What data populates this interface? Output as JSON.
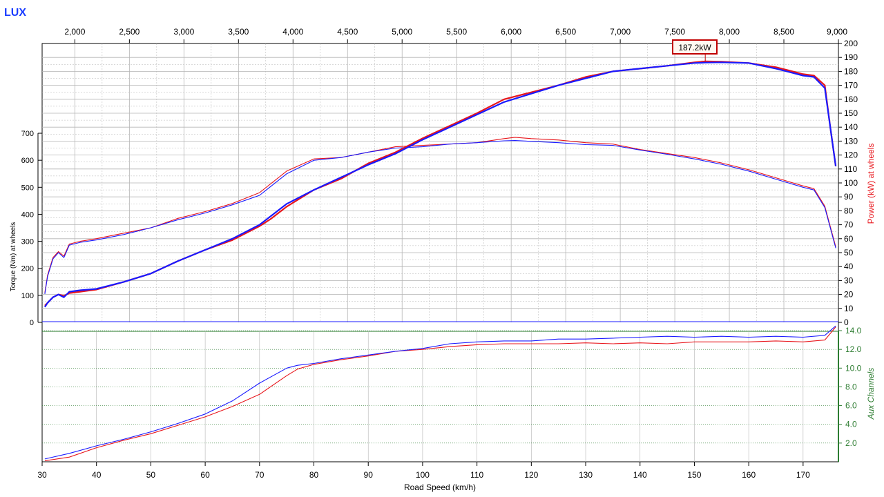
{
  "app_title": "LUX",
  "colors": {
    "run_a": "#e8161c",
    "run_b": "#1a1aff",
    "aux_axis": "#2e7d32",
    "grid": "#b4b4b4",
    "aux_grid": "#2e7d32"
  },
  "chart_data": {
    "type": "line",
    "title": "LUX",
    "xlabel": "Road Speed (km/h)",
    "xlim": [
      30,
      176.5
    ],
    "x_ticks": [
      "30",
      "40",
      "50",
      "60",
      "70",
      "80",
      "90",
      "100",
      "110",
      "120",
      "130",
      "140",
      "150",
      "160",
      "170"
    ],
    "rpm_axis": {
      "lim": [
        1700,
        9000
      ],
      "ticks": [
        "2,000",
        "2,500",
        "3,000",
        "3,500",
        "4,000",
        "4,500",
        "5,000",
        "5,500",
        "6,000",
        "6,500",
        "7,000",
        "7,500",
        "8,000",
        "8,500",
        "9,000"
      ]
    },
    "power_axis": {
      "label": "Power (kW) at wheels",
      "lim": [
        0,
        200
      ],
      "ticks": [
        "0",
        "10",
        "20",
        "30",
        "40",
        "50",
        "60",
        "70",
        "80",
        "90",
        "100",
        "110",
        "120",
        "130",
        "140",
        "150",
        "160",
        "170",
        "180",
        "190",
        "200"
      ]
    },
    "torque_axis": {
      "label": "Torque (Nm) at wheels",
      "lim": [
        0,
        700
      ],
      "ticks": [
        "0",
        "100",
        "200",
        "300",
        "400",
        "500",
        "600",
        "700"
      ]
    },
    "aux_axis": {
      "label": "Aux Channels",
      "lim": [
        0,
        14
      ],
      "ticks": [
        "2.0",
        "4.0",
        "6.0",
        "8.0",
        "10.0",
        "12.0",
        "14.0"
      ]
    },
    "peak_annotation": {
      "text": "187.2kW",
      "x": 152,
      "y": 187.2
    },
    "series": [
      {
        "group": "power",
        "run": "red",
        "x": [
          30.5,
          31,
          32,
          33,
          34,
          35,
          37,
          40,
          45,
          50,
          55,
          60,
          65,
          70,
          72,
          75,
          80,
          85,
          90,
          95,
          100,
          105,
          110,
          115,
          120,
          125,
          130,
          135,
          140,
          145,
          150,
          152,
          155,
          160,
          165,
          170,
          172,
          174,
          175,
          176
        ],
        "y": [
          12,
          14,
          18,
          20,
          19,
          21,
          22,
          23.5,
          29,
          35,
          44,
          52,
          59,
          69,
          74,
          83,
          95,
          103,
          114,
          122,
          132,
          141,
          150,
          160,
          165,
          170,
          176,
          180,
          182,
          184,
          186.5,
          187.2,
          187,
          186,
          183,
          178,
          177,
          170,
          140,
          112
        ]
      },
      {
        "group": "power",
        "run": "blue",
        "x": [
          30.5,
          31,
          32,
          33,
          34,
          35,
          37,
          40,
          45,
          50,
          55,
          60,
          65,
          70,
          72,
          75,
          80,
          85,
          90,
          95,
          100,
          105,
          110,
          115,
          120,
          125,
          130,
          135,
          140,
          145,
          150,
          152,
          155,
          160,
          165,
          170,
          172,
          174,
          175,
          176
        ],
        "y": [
          11,
          14,
          18,
          20,
          18,
          22,
          23,
          24,
          29,
          35,
          44,
          52,
          60,
          70,
          76,
          85,
          95,
          104,
          113,
          121,
          131,
          140,
          149,
          158,
          164,
          170,
          175,
          180,
          182,
          184,
          186,
          186.3,
          186.5,
          186,
          182,
          177,
          176,
          168,
          140,
          112
        ]
      },
      {
        "group": "torque",
        "run": "red",
        "x": [
          30.5,
          31,
          32,
          33,
          34,
          35,
          37,
          40,
          45,
          50,
          55,
          60,
          65,
          70,
          75,
          80,
          85,
          90,
          95,
          100,
          105,
          110,
          115,
          117,
          120,
          125,
          130,
          135,
          140,
          145,
          150,
          155,
          160,
          165,
          170,
          172,
          174,
          176
        ],
        "y": [
          110,
          175,
          240,
          262,
          245,
          290,
          300,
          310,
          330,
          350,
          385,
          410,
          440,
          480,
          560,
          605,
          610,
          630,
          650,
          655,
          660,
          665,
          680,
          685,
          680,
          675,
          665,
          660,
          640,
          625,
          610,
          590,
          565,
          535,
          505,
          495,
          430,
          280
        ]
      },
      {
        "group": "torque",
        "run": "blue",
        "x": [
          30.5,
          31,
          32,
          33,
          34,
          35,
          37,
          40,
          45,
          50,
          55,
          60,
          65,
          70,
          75,
          80,
          85,
          90,
          95,
          100,
          105,
          110,
          115,
          117,
          120,
          125,
          130,
          135,
          140,
          145,
          150,
          155,
          160,
          165,
          170,
          172,
          174,
          176
        ],
        "y": [
          105,
          170,
          235,
          258,
          240,
          286,
          296,
          305,
          325,
          350,
          380,
          405,
          435,
          470,
          550,
          600,
          610,
          630,
          645,
          650,
          660,
          665,
          672,
          673,
          670,
          665,
          658,
          655,
          638,
          622,
          605,
          585,
          560,
          530,
          500,
          490,
          425,
          275
        ]
      },
      {
        "group": "aux",
        "run": "red",
        "x": [
          30.5,
          35,
          40,
          45,
          50,
          55,
          60,
          65,
          70,
          75,
          77,
          80,
          85,
          90,
          95,
          100,
          105,
          110,
          115,
          120,
          125,
          130,
          135,
          140,
          145,
          150,
          155,
          160,
          165,
          170,
          174,
          176
        ],
        "y": [
          0.1,
          0.5,
          1.5,
          2.3,
          3.0,
          3.9,
          4.8,
          5.9,
          7.2,
          9.2,
          9.9,
          10.4,
          10.9,
          11.3,
          11.8,
          12.0,
          12.3,
          12.5,
          12.6,
          12.6,
          12.6,
          12.7,
          12.6,
          12.7,
          12.6,
          12.8,
          12.8,
          12.8,
          12.9,
          12.8,
          13.0,
          14.4
        ]
      },
      {
        "group": "aux",
        "run": "blue",
        "x": [
          30.5,
          35,
          40,
          45,
          50,
          55,
          60,
          65,
          70,
          75,
          77,
          80,
          85,
          90,
          95,
          100,
          105,
          110,
          115,
          120,
          125,
          130,
          135,
          140,
          145,
          150,
          155,
          160,
          165,
          170,
          174,
          176
        ],
        "y": [
          0.3,
          0.9,
          1.7,
          2.4,
          3.2,
          4.1,
          5.1,
          6.5,
          8.4,
          10.0,
          10.3,
          10.5,
          11.0,
          11.4,
          11.8,
          12.1,
          12.6,
          12.8,
          12.9,
          12.9,
          13.1,
          13.1,
          13.2,
          13.3,
          13.4,
          13.3,
          13.4,
          13.3,
          13.4,
          13.3,
          13.5,
          14.5
        ]
      }
    ]
  }
}
